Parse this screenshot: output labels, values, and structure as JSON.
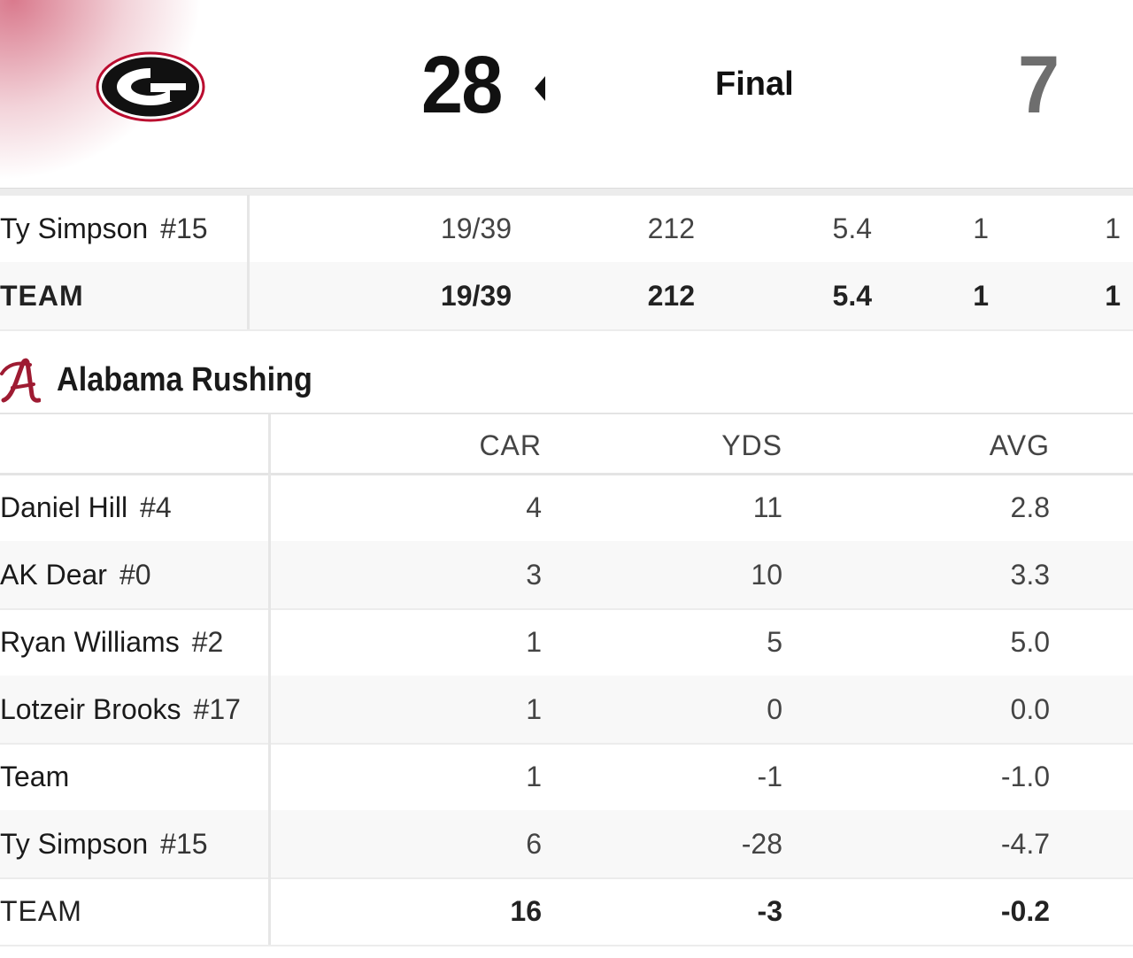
{
  "header": {
    "home_score": "28",
    "status": "Final",
    "away_score": "7",
    "colors": {
      "home_red": "#BA0C2F",
      "away_crimson": "#9E1B32"
    },
    "icons": [
      "georgia-g-logo",
      "winner-arrow-icon",
      "alabama-a-logo"
    ]
  },
  "passing": {
    "rows": [
      {
        "name": "Ty Simpson",
        "jersey": "#15",
        "cmp_att": "19/39",
        "yds": "212",
        "avg": "5.4",
        "td": "1",
        "int": "1"
      },
      {
        "name": "TEAM",
        "jersey": "",
        "cmp_att": "19/39",
        "yds": "212",
        "avg": "5.4",
        "td": "1",
        "int": "1"
      }
    ]
  },
  "rushing": {
    "title": "Alabama Rushing",
    "columns": [
      "CAR",
      "YDS",
      "AVG"
    ],
    "rows": [
      {
        "name": "Daniel Hill",
        "jersey": "#4",
        "car": "4",
        "yds": "11",
        "avg": "2.8"
      },
      {
        "name": "AK Dear",
        "jersey": "#0",
        "car": "3",
        "yds": "10",
        "avg": "3.3"
      },
      {
        "name": "Ryan Williams",
        "jersey": "#2",
        "car": "1",
        "yds": "5",
        "avg": "5.0"
      },
      {
        "name": "Lotzeir Brooks",
        "jersey": "#17",
        "car": "1",
        "yds": "0",
        "avg": "0.0"
      },
      {
        "name": "Team",
        "jersey": "",
        "car": "1",
        "yds": "-1",
        "avg": "-1.0"
      },
      {
        "name": "Ty Simpson",
        "jersey": "#15",
        "car": "6",
        "yds": "-28",
        "avg": "-4.7"
      },
      {
        "name": "TEAM",
        "jersey": "",
        "car": "16",
        "yds": "-3",
        "avg": "-0.2"
      }
    ]
  }
}
